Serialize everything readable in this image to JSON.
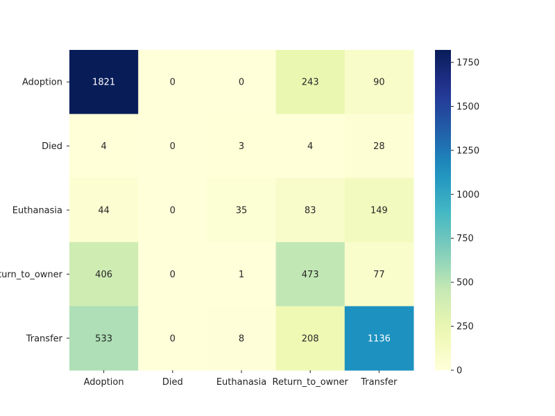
{
  "chart_data": {
    "type": "heatmap",
    "rows": [
      "Adoption",
      "Died",
      "Euthanasia",
      "Return_to_owner",
      "Transfer"
    ],
    "cols": [
      "Adoption",
      "Died",
      "Euthanasia",
      "Return_to_owner",
      "Transfer"
    ],
    "values": [
      [
        1821,
        0,
        0,
        243,
        90
      ],
      [
        4,
        0,
        3,
        4,
        28
      ],
      [
        44,
        0,
        35,
        83,
        149
      ],
      [
        406,
        0,
        1,
        473,
        77
      ],
      [
        533,
        0,
        8,
        208,
        1136
      ]
    ],
    "colormap": "YlGnBu",
    "colorbar": {
      "min": 0,
      "max": 1821,
      "ticks": [
        0,
        250,
        500,
        750,
        1000,
        1250,
        1500,
        1750
      ]
    },
    "title": "",
    "xlabel": "",
    "ylabel": ""
  }
}
